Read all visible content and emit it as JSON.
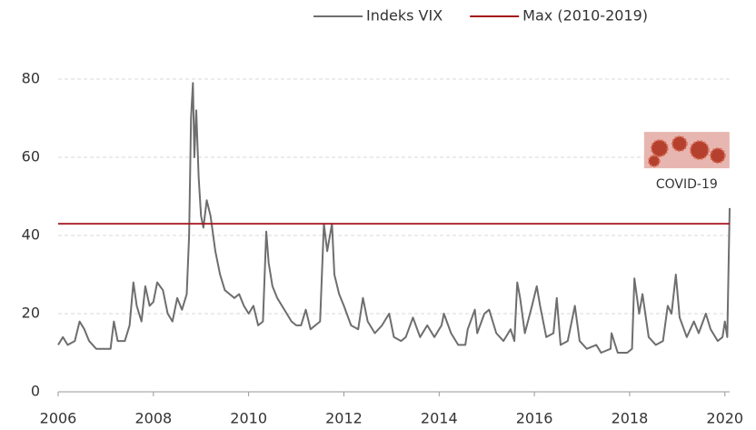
{
  "chart_data": {
    "type": "line",
    "x": [
      2006.0,
      2006.1,
      2006.2,
      2006.35,
      2006.45,
      2006.55,
      2006.65,
      2006.8,
      2006.95,
      2007.1,
      2007.17,
      2007.25,
      2007.4,
      2007.5,
      2007.58,
      2007.65,
      2007.75,
      2007.83,
      2007.92,
      2008.0,
      2008.08,
      2008.2,
      2008.3,
      2008.4,
      2008.5,
      2008.6,
      2008.7,
      2008.75,
      2008.79,
      2008.83,
      2008.86,
      2008.9,
      2008.95,
      2009.0,
      2009.05,
      2009.12,
      2009.2,
      2009.3,
      2009.4,
      2009.5,
      2009.6,
      2009.7,
      2009.8,
      2009.9,
      2010.0,
      2010.1,
      2010.2,
      2010.3,
      2010.37,
      2010.42,
      2010.5,
      2010.6,
      2010.7,
      2010.8,
      2010.9,
      2011.0,
      2011.1,
      2011.2,
      2011.3,
      2011.4,
      2011.5,
      2011.58,
      2011.65,
      2011.75,
      2011.8,
      2011.9,
      2012.0,
      2012.15,
      2012.3,
      2012.4,
      2012.5,
      2012.65,
      2012.8,
      2012.95,
      2013.05,
      2013.2,
      2013.3,
      2013.45,
      2013.6,
      2013.75,
      2013.9,
      2014.05,
      2014.1,
      2014.25,
      2014.4,
      2014.55,
      2014.6,
      2014.75,
      2014.8,
      2014.95,
      2015.05,
      2015.2,
      2015.35,
      2015.5,
      2015.58,
      2015.64,
      2015.7,
      2015.8,
      2015.95,
      2016.05,
      2016.12,
      2016.25,
      2016.4,
      2016.47,
      2016.55,
      2016.7,
      2016.85,
      2016.95,
      2017.1,
      2017.3,
      2017.4,
      2017.6,
      2017.62,
      2017.75,
      2017.95,
      2018.05,
      2018.1,
      2018.2,
      2018.27,
      2018.4,
      2018.55,
      2018.7,
      2018.8,
      2018.88,
      2018.97,
      2019.05,
      2019.2,
      2019.35,
      2019.45,
      2019.6,
      2019.7,
      2019.85,
      2019.95,
      2020.0,
      2020.05,
      2020.1
    ],
    "series": [
      {
        "name": "Indeks VIX",
        "color": "#6e6e6e",
        "values": [
          12,
          14,
          12,
          13,
          18,
          16,
          13,
          11,
          11,
          11,
          18,
          13,
          13,
          17,
          28,
          22,
          18,
          27,
          22,
          23,
          28,
          26,
          20,
          18,
          24,
          21,
          25,
          40,
          70,
          79,
          60,
          72,
          55,
          45,
          42,
          49,
          45,
          36,
          30,
          26,
          25,
          24,
          25,
          22,
          20,
          22,
          17,
          18,
          41,
          33,
          27,
          24,
          22,
          20,
          18,
          17,
          17,
          21,
          16,
          17,
          18,
          43,
          36,
          43,
          30,
          25,
          22,
          17,
          16,
          24,
          18,
          15,
          17,
          20,
          14,
          13,
          14,
          19,
          14,
          17,
          14,
          17,
          20,
          15,
          12,
          12,
          16,
          21,
          15,
          20,
          21,
          15,
          13,
          16,
          13,
          28,
          24,
          15,
          22,
          27,
          22,
          14,
          15,
          24,
          12,
          13,
          22,
          13,
          11,
          12,
          10,
          11,
          15,
          10,
          10,
          11,
          29,
          20,
          25,
          14,
          12,
          13,
          22,
          20,
          30,
          19,
          14,
          18,
          15,
          20,
          16,
          13,
          14,
          18,
          14,
          47
        ]
      },
      {
        "name": "Max (2010-2019)",
        "color": "#a5141e",
        "x": [
          2006.0,
          2020.1
        ],
        "values": [
          43,
          43
        ]
      }
    ],
    "xlim": [
      2006,
      2020.1
    ],
    "xticks": [
      2006,
      2008,
      2010,
      2012,
      2014,
      2016,
      2018,
      2020
    ],
    "ylim": [
      0,
      80
    ],
    "yticks": [
      0,
      20,
      40,
      60,
      80
    ],
    "grid": true,
    "legend": "top-right",
    "annotations": [
      {
        "text": "COVID-19",
        "x": 2019.2,
        "y": 53
      }
    ]
  }
}
